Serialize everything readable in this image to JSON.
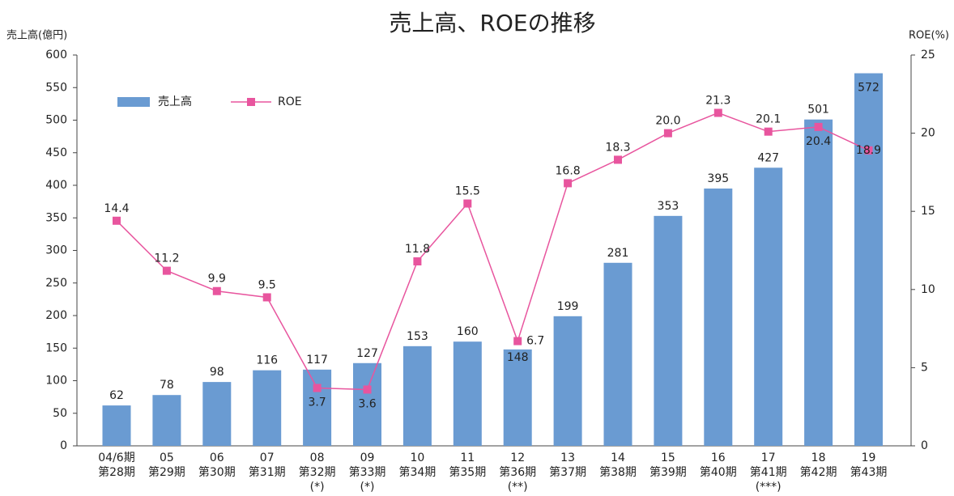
{
  "chart_data": {
    "type": "bar_line",
    "title": "売上高、ROEの推移",
    "y_label": "売上高(億円)",
    "y2_label": "ROE(%)",
    "categories": [
      [
        "04/6期",
        "第28期"
      ],
      [
        "05",
        "第29期"
      ],
      [
        "06",
        "第30期"
      ],
      [
        "07",
        "第31期"
      ],
      [
        "08",
        "第32期",
        "(*)"
      ],
      [
        "09",
        "第33期",
        "(*)"
      ],
      [
        "10",
        "第34期"
      ],
      [
        "11",
        "第35期"
      ],
      [
        "12",
        "第36期",
        "(**)"
      ],
      [
        "13",
        "第37期"
      ],
      [
        "14",
        "第38期"
      ],
      [
        "15",
        "第39期"
      ],
      [
        "16",
        "第40期"
      ],
      [
        "17",
        "第41期",
        "(***)"
      ],
      [
        "18",
        "第42期"
      ],
      [
        "19",
        "第43期"
      ]
    ],
    "series": [
      {
        "name": "売上高",
        "type": "bar",
        "color": "#6a9bd2",
        "axis": "y",
        "values": [
          62,
          78,
          98,
          116,
          117,
          127,
          153,
          160,
          148,
          199,
          281,
          353,
          395,
          427,
          501,
          572
        ]
      },
      {
        "name": "ROE",
        "type": "line",
        "color": "#e8559e",
        "axis": "y2",
        "values": [
          14.4,
          11.2,
          9.9,
          9.5,
          3.7,
          3.6,
          11.8,
          15.5,
          6.7,
          16.8,
          18.3,
          20.0,
          21.3,
          20.1,
          20.4,
          18.9
        ],
        "value_labels": [
          "14.4",
          "11.2",
          "9.9",
          "9.5",
          "3.7",
          "3.6",
          "11.8",
          "15.5",
          "6.7",
          "16.8",
          "18.3",
          "20.0",
          "21.3",
          "20.1",
          "20.4",
          "18.9"
        ]
      }
    ],
    "ylim": [
      0,
      600
    ],
    "yticks": [
      0,
      50,
      100,
      150,
      200,
      250,
      300,
      350,
      400,
      450,
      500,
      550,
      600
    ],
    "y2lim": [
      0,
      25
    ],
    "y2ticks": [
      0,
      5,
      10,
      15,
      20,
      25
    ],
    "grid": false,
    "legend": "top-left"
  }
}
